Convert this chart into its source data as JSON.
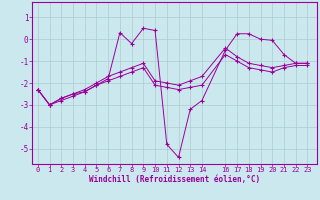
{
  "xlabel": "Windchill (Refroidissement éolien,°C)",
  "bg_color": "#cce8ef",
  "line_color": "#990099",
  "grid_color": "#aacccc",
  "yticks": [
    1,
    0,
    -1,
    -2,
    -3,
    -4,
    -5
  ],
  "xticks": [
    0,
    1,
    2,
    3,
    4,
    5,
    6,
    7,
    8,
    9,
    10,
    11,
    12,
    13,
    14,
    16,
    17,
    18,
    19,
    20,
    21,
    22,
    23
  ],
  "xlim": [
    -0.5,
    23.8
  ],
  "ylim": [
    -5.7,
    1.7
  ],
  "series": [
    {
      "x": [
        0,
        1,
        2,
        3,
        4,
        5,
        6,
        7,
        8,
        9,
        10,
        11,
        12,
        13,
        14,
        16,
        17,
        18,
        19,
        20,
        21,
        22,
        23
      ],
      "y": [
        -2.3,
        -3.0,
        -2.8,
        -2.6,
        -2.4,
        -2.1,
        -1.8,
        0.3,
        -0.2,
        0.5,
        0.4,
        -4.8,
        -5.4,
        -3.2,
        -2.8,
        -0.5,
        0.25,
        0.25,
        0.0,
        -0.05,
        -0.7,
        -1.1,
        -1.1
      ]
    },
    {
      "x": [
        0,
        1,
        2,
        3,
        4,
        5,
        6,
        7,
        8,
        9,
        10,
        11,
        12,
        13,
        14,
        16,
        17,
        18,
        19,
        20,
        21,
        22,
        23
      ],
      "y": [
        -2.3,
        -3.0,
        -2.7,
        -2.5,
        -2.3,
        -2.0,
        -1.7,
        -1.5,
        -1.3,
        -1.1,
        -1.9,
        -2.0,
        -2.1,
        -1.9,
        -1.7,
        -0.4,
        -0.8,
        -1.1,
        -1.2,
        -1.3,
        -1.2,
        -1.1,
        -1.1
      ]
    },
    {
      "x": [
        0,
        1,
        2,
        3,
        4,
        5,
        6,
        7,
        8,
        9,
        10,
        11,
        12,
        13,
        14,
        16,
        17,
        18,
        19,
        20,
        21,
        22,
        23
      ],
      "y": [
        -2.3,
        -3.0,
        -2.7,
        -2.5,
        -2.4,
        -2.1,
        -1.9,
        -1.7,
        -1.5,
        -1.3,
        -2.1,
        -2.2,
        -2.3,
        -2.2,
        -2.1,
        -0.7,
        -1.0,
        -1.3,
        -1.4,
        -1.5,
        -1.3,
        -1.2,
        -1.2
      ]
    }
  ]
}
